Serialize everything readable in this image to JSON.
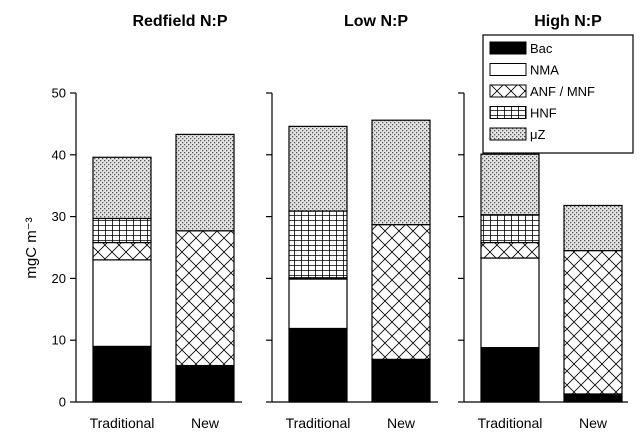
{
  "chart_data": {
    "type": "bar",
    "stacked": true,
    "ylabel": "mgC m⁻³",
    "ylim": [
      0,
      50
    ],
    "yticks": [
      "0",
      "10",
      "20",
      "30",
      "40",
      "50"
    ],
    "legend": {
      "placement": "top-right",
      "entries": [
        {
          "name": "Bac",
          "pattern": "solid-black"
        },
        {
          "name": "NMA",
          "pattern": "white"
        },
        {
          "name": "ANF / MNF",
          "pattern": "crosshatch-diagonal"
        },
        {
          "name": "HNF",
          "pattern": "grid"
        },
        {
          "name": "μZ",
          "pattern": "dotted"
        }
      ]
    },
    "panels": [
      {
        "title": "Redfield N:P",
        "categories": [
          "Traditional",
          "New"
        ],
        "series": [
          {
            "name": "Bac",
            "values": [
              9.0,
              5.9
            ]
          },
          {
            "name": "NMA",
            "values": [
              14.0,
              0
            ]
          },
          {
            "name": "ANF / MNF",
            "values": [
              2.8,
              21.8
            ]
          },
          {
            "name": "HNF",
            "values": [
              3.9,
              0
            ]
          },
          {
            "name": "μZ",
            "values": [
              9.9,
              15.6
            ]
          }
        ]
      },
      {
        "title": "Low N:P",
        "categories": [
          "Traditional",
          "New"
        ],
        "series": [
          {
            "name": "Bac",
            "values": [
              11.9,
              6.9
            ]
          },
          {
            "name": "NMA",
            "values": [
              8.0,
              0
            ]
          },
          {
            "name": "ANF / MNF",
            "values": [
              0.2,
              21.8
            ]
          },
          {
            "name": "HNF",
            "values": [
              10.8,
              0
            ]
          },
          {
            "name": "μZ",
            "values": [
              13.7,
              16.9
            ]
          }
        ]
      },
      {
        "title": "High N:P",
        "categories": [
          "Traditional",
          "New"
        ],
        "series": [
          {
            "name": "Bac",
            "values": [
              8.8,
              1.3
            ]
          },
          {
            "name": "NMA",
            "values": [
              14.5,
              0
            ]
          },
          {
            "name": "ANF / MNF",
            "values": [
              2.5,
              23.2
            ]
          },
          {
            "name": "HNF",
            "values": [
              4.5,
              0
            ]
          },
          {
            "name": "μZ",
            "values": [
              9.8,
              7.3
            ]
          }
        ]
      }
    ]
  }
}
